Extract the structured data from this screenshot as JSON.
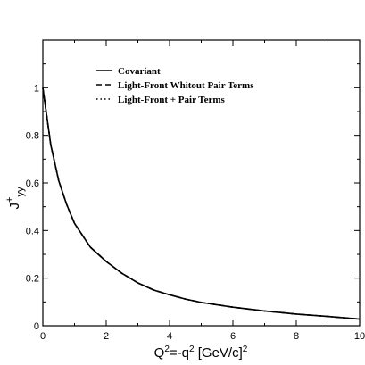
{
  "chart_data": {
    "type": "line",
    "xlabel": {
      "base": "Q",
      "sup1": "2",
      "mid": "=-q",
      "sup2": "2",
      "tail": " [GeV/c]",
      "sup3": "2"
    },
    "ylabel": {
      "base": "J",
      "sup": "+",
      "sub": "yy"
    },
    "xlim": [
      0,
      10
    ],
    "ylim": [
      0,
      1.2
    ],
    "xticks": [
      0,
      2,
      4,
      6,
      8,
      10
    ],
    "xtick_labels": [
      "0",
      "2",
      "4",
      "6",
      "8",
      "10"
    ],
    "yticks": [
      0,
      0.2,
      0.4,
      0.6,
      0.8,
      1.0
    ],
    "ytick_labels": [
      "0",
      "0.2",
      "0.4",
      "0.6",
      "0.8",
      "1"
    ],
    "grid": false,
    "legend_position": "top-left",
    "series": [
      {
        "name": "Covariant",
        "line_style": "solid",
        "color": "#000000",
        "x": [
          0,
          0.25,
          0.5,
          0.75,
          1.0,
          1.5,
          2.0,
          2.5,
          3.0,
          3.5,
          4.0,
          4.5,
          5.0,
          6.0,
          7.0,
          8.0,
          9.0,
          10.0
        ],
        "y": [
          1.0,
          0.76,
          0.61,
          0.51,
          0.43,
          0.33,
          0.27,
          0.22,
          0.18,
          0.15,
          0.13,
          0.112,
          0.098,
          0.078,
          0.062,
          0.049,
          0.039,
          0.028
        ]
      },
      {
        "name": "Light-Front Whitout Pair Terms",
        "line_style": "dashed",
        "color": "#000000",
        "x": [
          0,
          0.25,
          0.5,
          0.75,
          1.0,
          1.5,
          2.0,
          2.5,
          3.0,
          3.5,
          4.0,
          4.5,
          5.0,
          6.0,
          7.0,
          8.0,
          9.0,
          10.0
        ],
        "y": [
          1.0,
          0.76,
          0.61,
          0.51,
          0.43,
          0.33,
          0.27,
          0.22,
          0.18,
          0.15,
          0.13,
          0.112,
          0.098,
          0.078,
          0.062,
          0.049,
          0.039,
          0.028
        ]
      },
      {
        "name": "Light-Front + Pair Terms",
        "line_style": "dotted",
        "color": "#000000",
        "x": [
          0,
          0.25,
          0.5,
          0.75,
          1.0,
          1.5,
          2.0,
          2.5,
          3.0,
          3.5,
          4.0,
          4.5,
          5.0,
          6.0,
          7.0,
          8.0,
          9.0,
          10.0
        ],
        "y": [
          1.0,
          0.76,
          0.61,
          0.51,
          0.43,
          0.33,
          0.27,
          0.22,
          0.18,
          0.15,
          0.13,
          0.112,
          0.098,
          0.078,
          0.062,
          0.049,
          0.039,
          0.028
        ]
      }
    ]
  }
}
